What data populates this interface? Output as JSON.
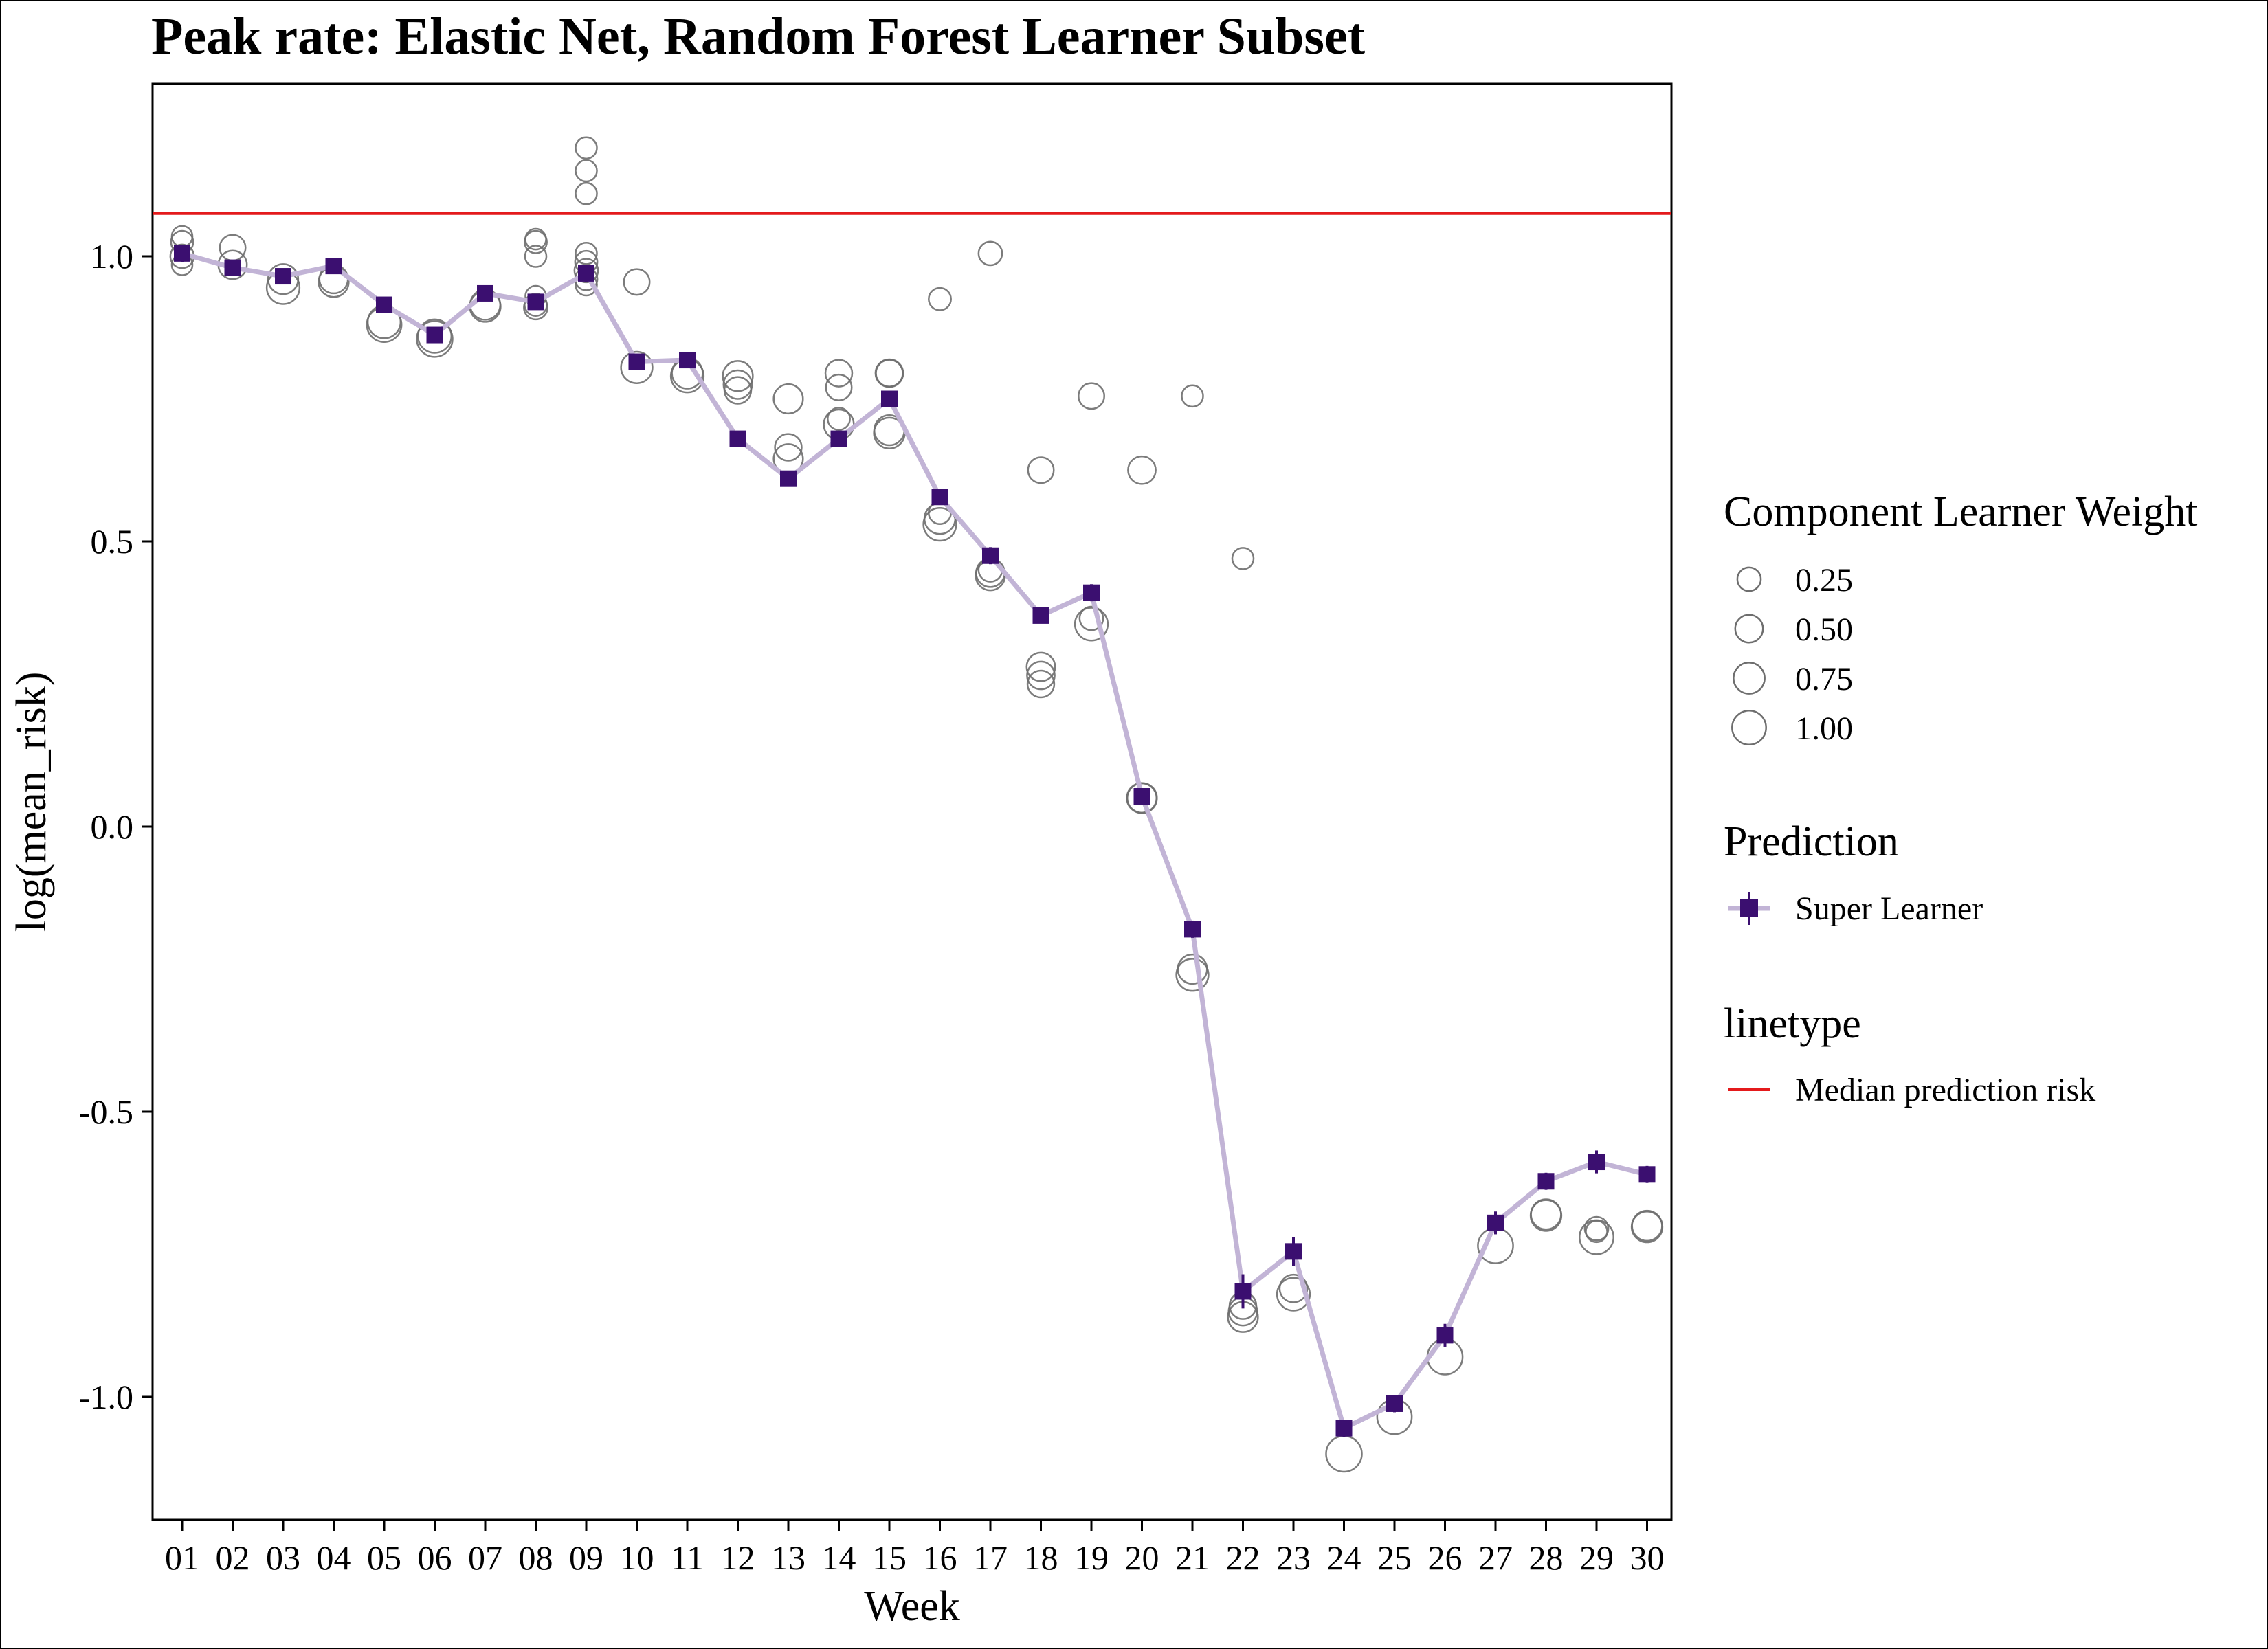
{
  "colors": {
    "super_learner": "#3b0f70",
    "super_learner_line": "#c2b4d6",
    "median_line": "#e41a1c",
    "component_circle": "#6e6e6e"
  },
  "chart_data": {
    "type": "scatter",
    "title": "Peak rate: Elastic Net, Random Forest Learner Subset",
    "xlabel": "Week",
    "ylabel": "log(mean_risk)",
    "ylim": [
      -1.2,
      1.3
    ],
    "yticks": [
      "1.0",
      "0.5",
      "0.0",
      "-0.5",
      "-1.0"
    ],
    "ytick_values": [
      1.0,
      0.5,
      0.0,
      -0.5,
      -1.0
    ],
    "categories": [
      "01",
      "02",
      "03",
      "04",
      "05",
      "06",
      "07",
      "08",
      "09",
      "10",
      "11",
      "12",
      "13",
      "14",
      "15",
      "16",
      "17",
      "18",
      "19",
      "20",
      "21",
      "22",
      "23",
      "24",
      "25",
      "26",
      "27",
      "28",
      "29",
      "30"
    ],
    "grid": false,
    "legend_placement": "right",
    "median_prediction_risk": 1.075,
    "series": [
      {
        "name": "Super Learner",
        "values": [
          1.005,
          0.98,
          0.965,
          0.983,
          0.915,
          0.862,
          0.935,
          0.92,
          0.97,
          0.815,
          0.818,
          0.68,
          0.61,
          0.68,
          0.75,
          0.578,
          0.475,
          0.37,
          0.41,
          0.053,
          -0.18,
          -0.815,
          -0.745,
          -1.055,
          -1.012,
          -0.892,
          -0.695,
          -0.622,
          -0.588,
          -0.61
        ],
        "err": [
          0.015,
          0.01,
          0.01,
          0.01,
          0.01,
          0.01,
          0.01,
          0.01,
          0.015,
          0.01,
          0.01,
          0.01,
          0.01,
          0.01,
          0.01,
          0.01,
          0.015,
          0.01,
          0.015,
          0.01,
          0.015,
          0.03,
          0.025,
          0.015,
          0.015,
          0.02,
          0.02,
          0.015,
          0.02,
          0.015
        ]
      }
    ],
    "component_learners": [
      {
        "week": "01",
        "value": 1.035,
        "weight": 0.1
      },
      {
        "week": "01",
        "value": 1.025,
        "weight": 0.15
      },
      {
        "week": "01",
        "value": 0.985,
        "weight": 0.1
      },
      {
        "week": "01",
        "value": 1.0,
        "weight": 0.2
      },
      {
        "week": "02",
        "value": 1.015,
        "weight": 0.3
      },
      {
        "week": "02",
        "value": 0.985,
        "weight": 0.45
      },
      {
        "week": "03",
        "value": 0.96,
        "weight": 0.55
      },
      {
        "week": "03",
        "value": 0.945,
        "weight": 0.75
      },
      {
        "week": "04",
        "value": 0.96,
        "weight": 0.45
      },
      {
        "week": "04",
        "value": 0.955,
        "weight": 0.55
      },
      {
        "week": "05",
        "value": 0.885,
        "weight": 0.75
      },
      {
        "week": "05",
        "value": 0.88,
        "weight": 0.9
      },
      {
        "week": "06",
        "value": 0.86,
        "weight": 0.8
      },
      {
        "week": "06",
        "value": 0.855,
        "weight": 1.0
      },
      {
        "week": "07",
        "value": 0.915,
        "weight": 0.55
      },
      {
        "week": "07",
        "value": 0.912,
        "weight": 0.6
      },
      {
        "week": "08",
        "value": 1.03,
        "weight": 0.1
      },
      {
        "week": "08",
        "value": 1.025,
        "weight": 0.15
      },
      {
        "week": "08",
        "value": 1.0,
        "weight": 0.12
      },
      {
        "week": "08",
        "value": 0.93,
        "weight": 0.1
      },
      {
        "week": "08",
        "value": 0.915,
        "weight": 0.15
      },
      {
        "week": "08",
        "value": 0.91,
        "weight": 0.2
      },
      {
        "week": "09",
        "value": 1.19,
        "weight": 0.12
      },
      {
        "week": "09",
        "value": 1.15,
        "weight": 0.12
      },
      {
        "week": "09",
        "value": 1.11,
        "weight": 0.12
      },
      {
        "week": "09",
        "value": 1.005,
        "weight": 0.12
      },
      {
        "week": "09",
        "value": 0.99,
        "weight": 0.15
      },
      {
        "week": "09",
        "value": 0.975,
        "weight": 0.2
      },
      {
        "week": "09",
        "value": 0.96,
        "weight": 0.15
      },
      {
        "week": "09",
        "value": 0.95,
        "weight": 0.12
      },
      {
        "week": "10",
        "value": 0.955,
        "weight": 0.3
      },
      {
        "week": "10",
        "value": 0.805,
        "weight": 0.65
      },
      {
        "week": "11",
        "value": 0.795,
        "weight": 0.6
      },
      {
        "week": "11",
        "value": 0.79,
        "weight": 0.75
      },
      {
        "week": "12",
        "value": 0.79,
        "weight": 0.55
      },
      {
        "week": "12",
        "value": 0.775,
        "weight": 0.45
      },
      {
        "week": "12",
        "value": 0.765,
        "weight": 0.35
      },
      {
        "week": "13",
        "value": 0.75,
        "weight": 0.5
      },
      {
        "week": "13",
        "value": 0.665,
        "weight": 0.35
      },
      {
        "week": "13",
        "value": 0.645,
        "weight": 0.5
      },
      {
        "week": "14",
        "value": 0.795,
        "weight": 0.35
      },
      {
        "week": "14",
        "value": 0.77,
        "weight": 0.3
      },
      {
        "week": "14",
        "value": 0.715,
        "weight": 0.15
      },
      {
        "week": "14",
        "value": 0.705,
        "weight": 0.55
      },
      {
        "week": "15",
        "value": 0.795,
        "weight": 0.4
      },
      {
        "week": "15",
        "value": 0.795,
        "weight": 0.35
      },
      {
        "week": "15",
        "value": 0.695,
        "weight": 0.55
      },
      {
        "week": "15",
        "value": 0.69,
        "weight": 0.6
      },
      {
        "week": "16",
        "value": 0.925,
        "weight": 0.15
      },
      {
        "week": "16",
        "value": 0.55,
        "weight": 0.15
      },
      {
        "week": "16",
        "value": 0.54,
        "weight": 0.6
      },
      {
        "week": "16",
        "value": 0.53,
        "weight": 0.75
      },
      {
        "week": "17",
        "value": 1.005,
        "weight": 0.2
      },
      {
        "week": "17",
        "value": 0.45,
        "weight": 0.2
      },
      {
        "week": "17",
        "value": 0.445,
        "weight": 0.45
      },
      {
        "week": "17",
        "value": 0.44,
        "weight": 0.5
      },
      {
        "week": "18",
        "value": 0.625,
        "weight": 0.3
      },
      {
        "week": "18",
        "value": 0.28,
        "weight": 0.45
      },
      {
        "week": "18",
        "value": 0.265,
        "weight": 0.4
      },
      {
        "week": "18",
        "value": 0.25,
        "weight": 0.35
      },
      {
        "week": "19",
        "value": 0.755,
        "weight": 0.3
      },
      {
        "week": "19",
        "value": 0.365,
        "weight": 0.2
      },
      {
        "week": "19",
        "value": 0.355,
        "weight": 0.75
      },
      {
        "week": "20",
        "value": 0.625,
        "weight": 0.4
      },
      {
        "week": "20",
        "value": 0.05,
        "weight": 0.5
      },
      {
        "week": "20",
        "value": 0.05,
        "weight": 0.55
      },
      {
        "week": "21",
        "value": 0.755,
        "weight": 0.12
      },
      {
        "week": "21",
        "value": -0.25,
        "weight": 0.5
      },
      {
        "week": "21",
        "value": -0.26,
        "weight": 0.7
      },
      {
        "week": "22",
        "value": 0.47,
        "weight": 0.12
      },
      {
        "week": "22",
        "value": -0.84,
        "weight": 0.35
      },
      {
        "week": "22",
        "value": -0.85,
        "weight": 0.45
      },
      {
        "week": "22",
        "value": -0.86,
        "weight": 0.55
      },
      {
        "week": "23",
        "value": -0.81,
        "weight": 0.4
      },
      {
        "week": "23",
        "value": -0.82,
        "weight": 0.75
      },
      {
        "week": "24",
        "value": -1.1,
        "weight": 1.0
      },
      {
        "week": "25",
        "value": -1.035,
        "weight": 0.9
      },
      {
        "week": "26",
        "value": -0.93,
        "weight": 0.95
      },
      {
        "week": "27",
        "value": -0.735,
        "weight": 0.95
      },
      {
        "week": "28",
        "value": -0.68,
        "weight": 0.55
      },
      {
        "week": "28",
        "value": -0.682,
        "weight": 0.6
      },
      {
        "week": "29",
        "value": -0.71,
        "weight": 0.12
      },
      {
        "week": "29",
        "value": -0.705,
        "weight": 0.2
      },
      {
        "week": "29",
        "value": -0.72,
        "weight": 0.85
      },
      {
        "week": "30",
        "value": -0.7,
        "weight": 0.55
      },
      {
        "week": "30",
        "value": -0.702,
        "weight": 0.6
      }
    ]
  },
  "legend": {
    "size": {
      "title": "Component Learner Weight",
      "items": [
        {
          "label": "0.25",
          "weight": 0.25
        },
        {
          "label": "0.50",
          "weight": 0.5
        },
        {
          "label": "0.75",
          "weight": 0.75
        },
        {
          "label": "1.00",
          "weight": 1.0
        }
      ]
    },
    "prediction": {
      "title": "Prediction",
      "label": "Super Learner"
    },
    "linetype": {
      "title": "linetype",
      "label": "Median prediction risk"
    }
  }
}
